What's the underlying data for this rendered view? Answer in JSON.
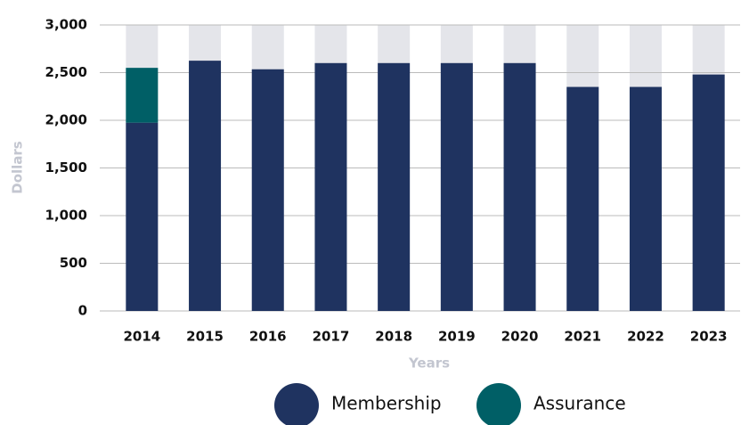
{
  "chart_data": {
    "type": "stacked_bar",
    "categories": [
      "2014",
      "2015",
      "2016",
      "2017",
      "2018",
      "2019",
      "2020",
      "2021",
      "2022",
      "2023"
    ],
    "series": [
      {
        "name": "Membership",
        "color": "#1f3360",
        "values": [
          1975,
          2625,
          2535,
          2600,
          2600,
          2600,
          2600,
          2350,
          2350,
          2480
        ]
      },
      {
        "name": "Assurance",
        "color": "#005f66",
        "values": [
          575,
          0,
          0,
          0,
          0,
          0,
          0,
          0,
          0,
          0
        ]
      }
    ],
    "xlabel": "Years",
    "ylabel": "Dollars",
    "ylim": [
      0,
      3000
    ],
    "yticks": [
      0,
      500,
      {
        "value": 1000,
        "label": "1,000"
      },
      {
        "value": 1500,
        "label": "1,500"
      },
      {
        "value": 2000,
        "label": "2,000"
      },
      {
        "value": 2500,
        "label": "2,500"
      },
      {
        "value": 3000,
        "label": "3,000"
      }
    ],
    "grid": true,
    "legend": "bottom"
  }
}
